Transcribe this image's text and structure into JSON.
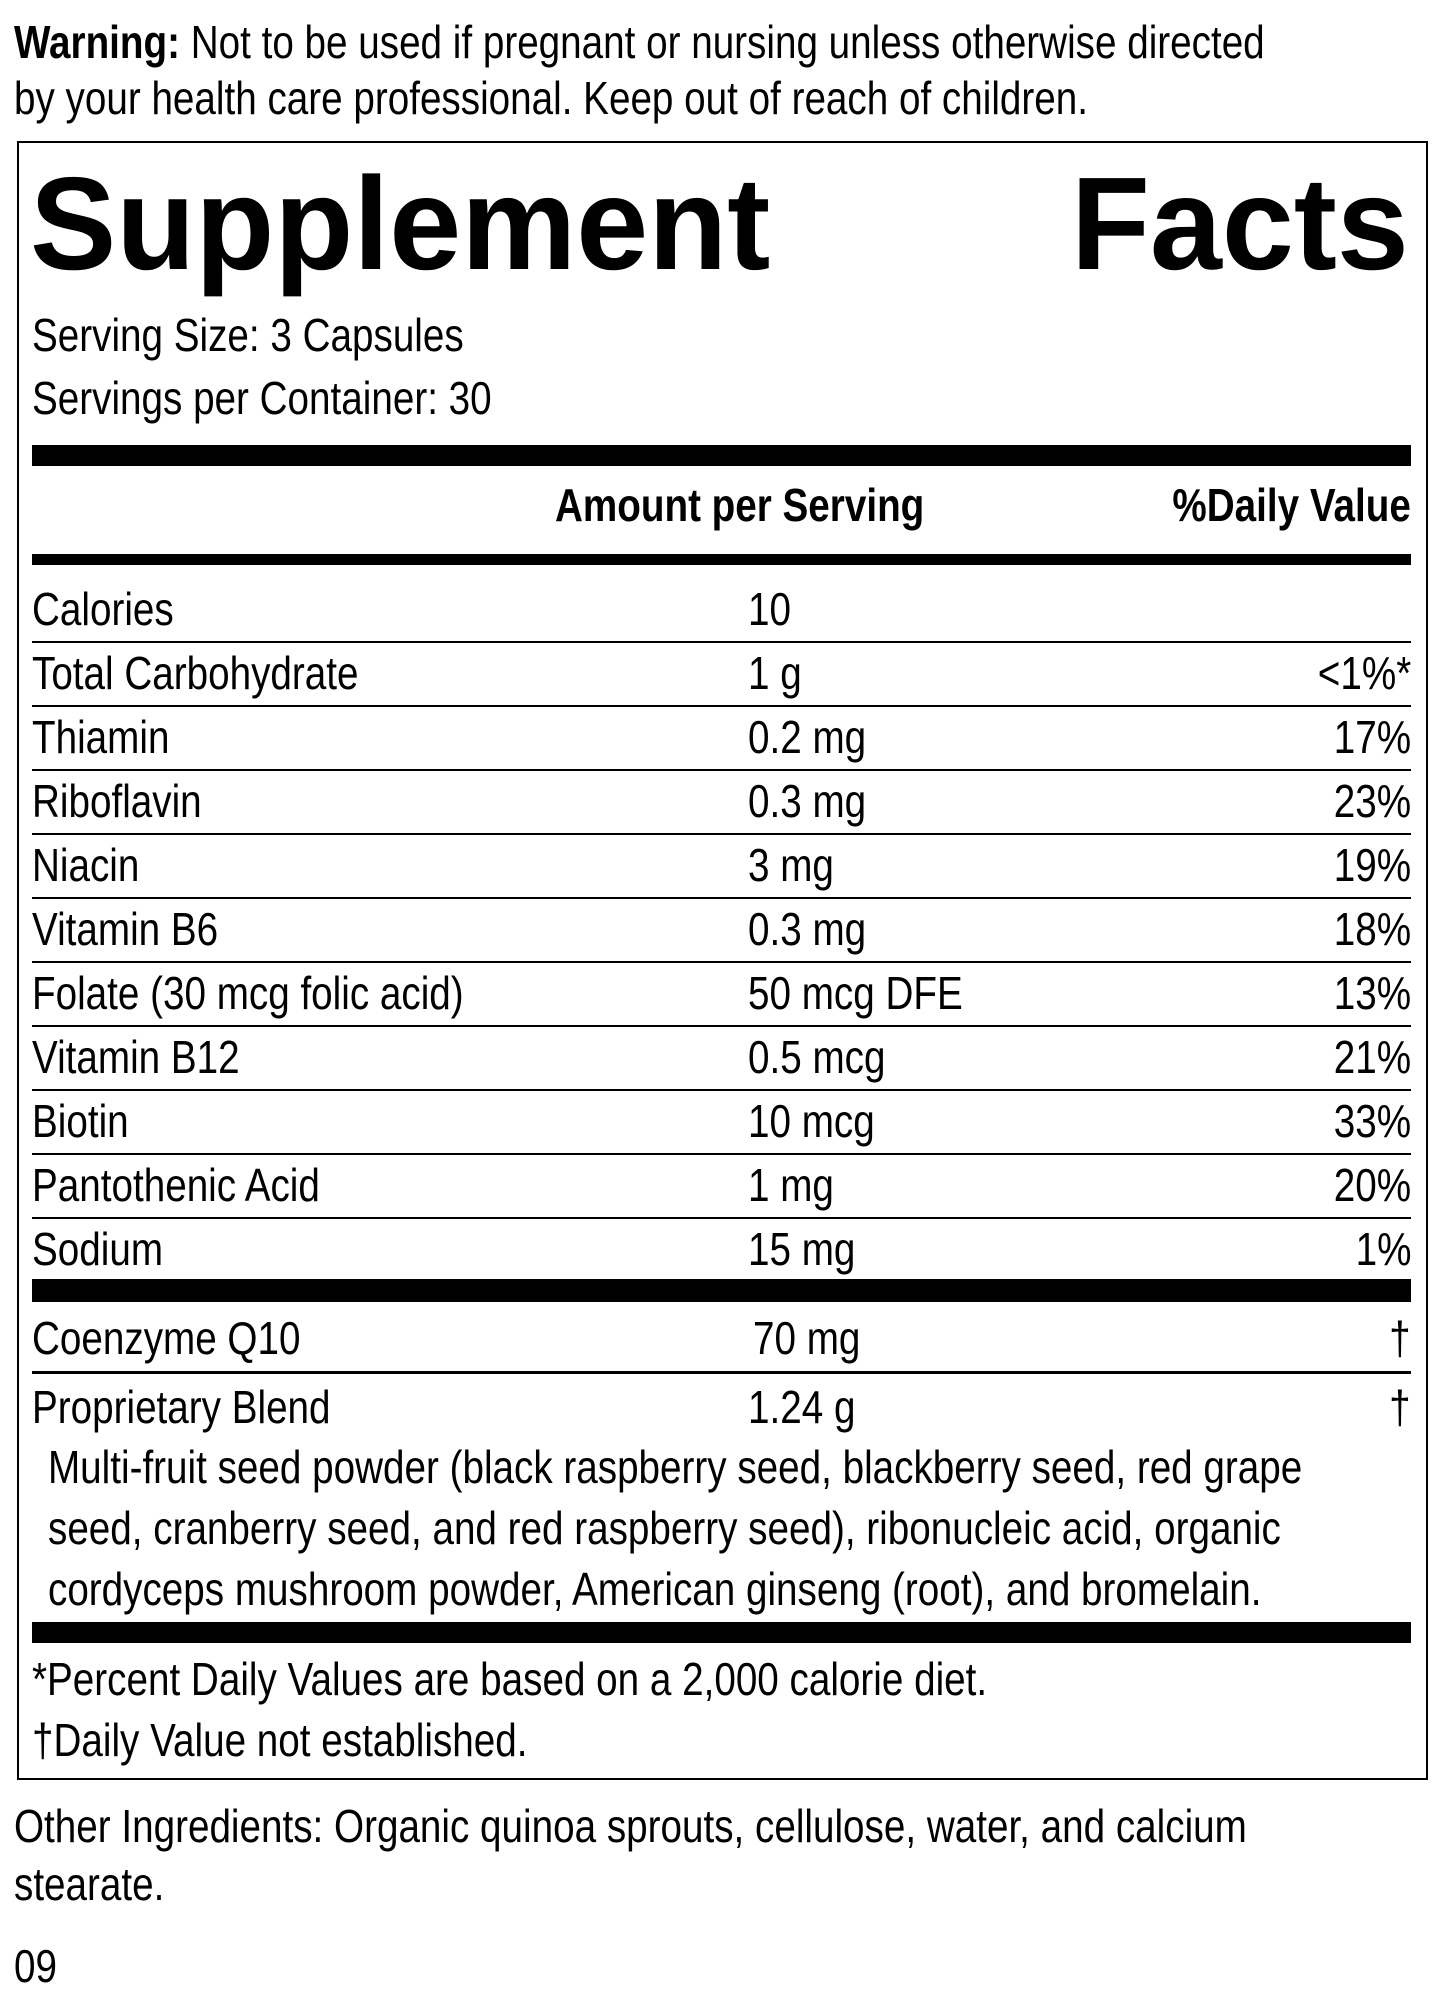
{
  "warning": {
    "label": "Warning:",
    "line1": "Not to be used if pregnant or nursing unless otherwise directed",
    "line2": "by your health care professional. Keep out of reach of children."
  },
  "title": {
    "word1": "Supplement",
    "word2": "Facts"
  },
  "serving_size": "Serving Size: 3 Capsules",
  "servings_per_container": "Servings per Container: 30",
  "header": {
    "amount": "Amount per Serving",
    "dv": "%Daily Value"
  },
  "rows": [
    {
      "name": "Calories",
      "amount": "10",
      "dv": ""
    },
    {
      "name": "Total Carbohydrate",
      "amount": "1 g",
      "dv": "<1%*"
    },
    {
      "name": "Thiamin",
      "amount": "0.2 mg",
      "dv": "17%"
    },
    {
      "name": "Riboflavin",
      "amount": "0.3 mg",
      "dv": "23%"
    },
    {
      "name": "Niacin",
      "amount": "3 mg",
      "dv": "19%"
    },
    {
      "name": "Vitamin B6",
      "amount": "0.3 mg",
      "dv": "18%"
    },
    {
      "name": "Folate (30 mcg folic acid)",
      "amount": "50 mcg DFE",
      "dv": "13%"
    },
    {
      "name": "Vitamin B12",
      "amount": "0.5 mcg",
      "dv": "21%"
    },
    {
      "name": "Biotin",
      "amount": "10 mcg",
      "dv": "33%"
    },
    {
      "name": "Pantothenic Acid",
      "amount": "1 mg",
      "dv": "20%"
    },
    {
      "name": "Sodium",
      "amount": "15 mg",
      "dv": "1%"
    }
  ],
  "coq10": {
    "name": "Coenzyme Q10",
    "amount": "70 mg",
    "dv": "†"
  },
  "blend": {
    "name": "Proprietary Blend",
    "amount": "1.24 g",
    "dv": "†",
    "desc": [
      "Multi-fruit seed powder (black raspberry seed, blackberry seed, red grape",
      "seed, cranberry seed, and red raspberry seed), ribonucleic acid, organic",
      "cordyceps mushroom powder, American ginseng (root), and bromelain."
    ]
  },
  "footnotes": [
    "*Percent Daily Values are based on a 2,000 calorie diet.",
    "†Daily Value not established."
  ],
  "other_ingredients": [
    "Other Ingredients: Organic quinoa sprouts, cellulose, water, and calcium",
    "stearate."
  ],
  "code": "09"
}
